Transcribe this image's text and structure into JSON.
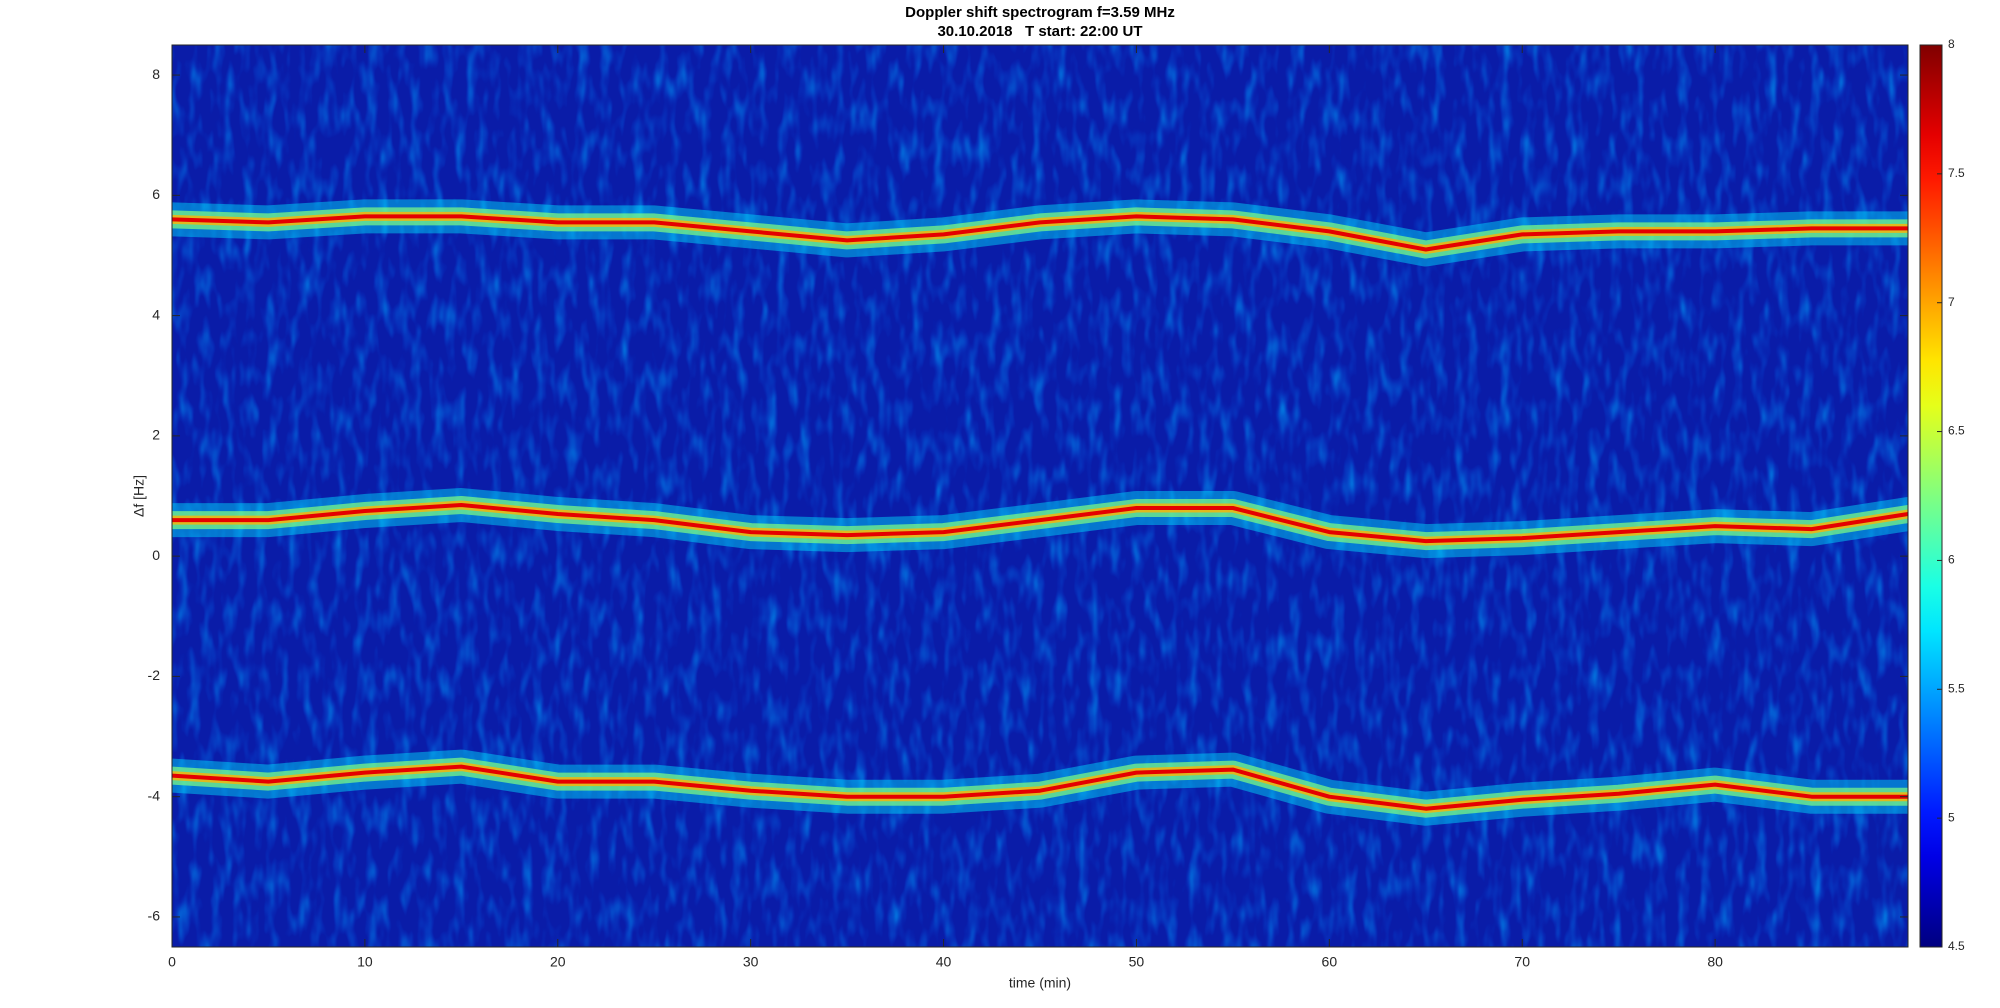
{
  "chart_data": {
    "type": "spectrogram",
    "title": "Doppler shift spectrogram f=3.59 MHz",
    "subtitle": "30.10.2018   T start: 22:00 UT",
    "x_label": "time (min)",
    "y_label": "Δf [Hz]",
    "xlim": [
      0,
      90
    ],
    "xticks": [
      0,
      10,
      20,
      30,
      40,
      50,
      60,
      70,
      80
    ],
    "ylim": [
      -6.5,
      8.5
    ],
    "yticks": [
      -6,
      -4,
      -2,
      0,
      2,
      4,
      6,
      8
    ],
    "colormap": "jet",
    "clim": [
      4.5,
      8
    ],
    "cticks": [
      4.5,
      5,
      5.5,
      6,
      6.5,
      7,
      7.5,
      8
    ],
    "x": [
      0,
      5,
      10,
      15,
      20,
      25,
      30,
      35,
      40,
      45,
      50,
      55,
      60,
      65,
      70,
      75,
      80,
      85,
      90
    ],
    "series": [
      {
        "values": [
          5.6,
          5.55,
          5.65,
          5.65,
          5.55,
          5.55,
          5.4,
          5.25,
          5.35,
          5.55,
          5.65,
          5.6,
          5.4,
          5.1,
          5.35,
          5.4,
          5.4,
          5.45,
          5.45
        ]
      },
      {
        "values": [
          0.6,
          0.6,
          0.75,
          0.85,
          0.7,
          0.6,
          0.4,
          0.35,
          0.4,
          0.6,
          0.8,
          0.8,
          0.4,
          0.25,
          0.3,
          0.4,
          0.5,
          0.45,
          0.7
        ]
      },
      {
        "values": [
          -3.65,
          -3.75,
          -3.6,
          -3.5,
          -3.75,
          -3.75,
          -3.9,
          -4.0,
          -4.0,
          -3.9,
          -3.6,
          -3.55,
          -4.0,
          -4.2,
          -4.05,
          -3.95,
          -3.8,
          -4.0,
          -4.0
        ]
      }
    ]
  }
}
